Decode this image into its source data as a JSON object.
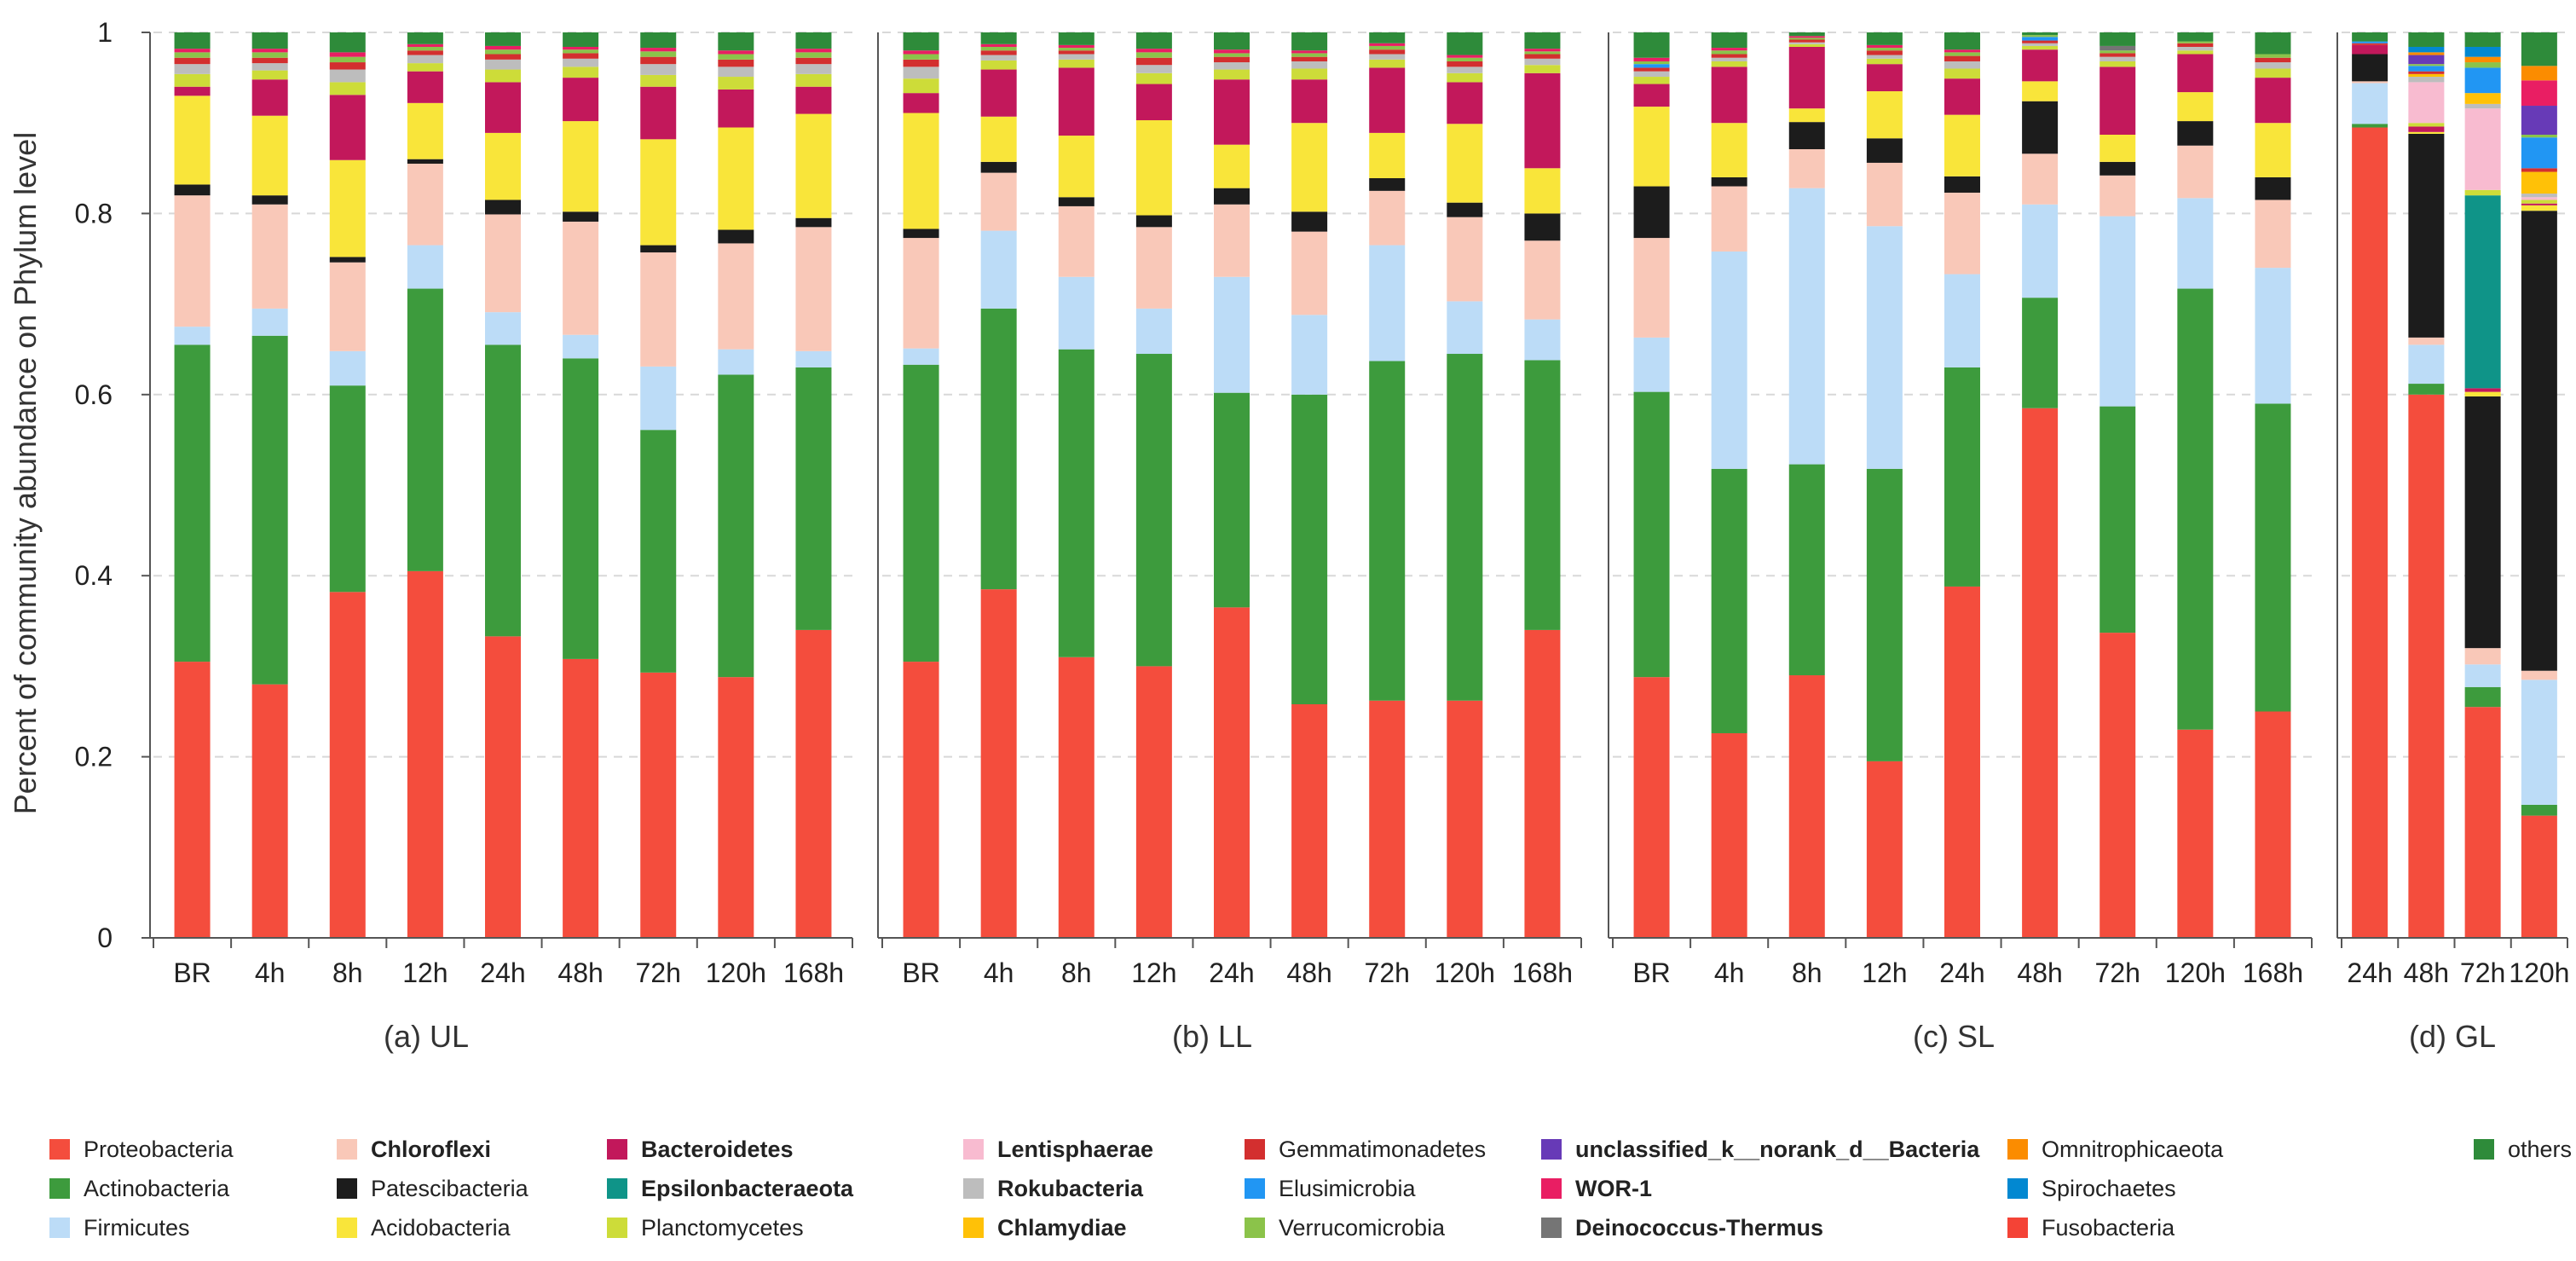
{
  "chart_data": {
    "type": "bar",
    "stacked": true,
    "ylabel": "Percent of community abundance on Phylum level",
    "ylim": [
      0,
      1
    ],
    "yticks": [
      "0",
      "0.2",
      "0.4",
      "0.6",
      "0.8",
      "1"
    ],
    "grid": true,
    "legend_position": "bottom",
    "series": [
      {
        "name": "Proteobacteria",
        "color": "#f44d3d",
        "bold": false
      },
      {
        "name": "Actinobacteria",
        "color": "#3d9b3d",
        "bold": false
      },
      {
        "name": "Firmicutes",
        "color": "#bcdcf7",
        "bold": false
      },
      {
        "name": "Chloroflexi",
        "color": "#f9c8b8",
        "bold": true
      },
      {
        "name": "Patescibacteria",
        "color": "#1c1c1c",
        "bold": false
      },
      {
        "name": "Acidobacteria",
        "color": "#f9e53a",
        "bold": false
      },
      {
        "name": "Bacteroidetes",
        "color": "#c2185b",
        "bold": true
      },
      {
        "name": "Epsilonbacteraeota",
        "color": "#0f9488",
        "bold": true
      },
      {
        "name": "Planctomycetes",
        "color": "#cddc39",
        "bold": false
      },
      {
        "name": "Lentisphaerae",
        "color": "#f8bbd0",
        "bold": true
      },
      {
        "name": "Rokubacteria",
        "color": "#bdbdbd",
        "bold": true
      },
      {
        "name": "Chlamydiae",
        "color": "#ffc107",
        "bold": true
      },
      {
        "name": "Gemmatimonadetes",
        "color": "#d32f2f",
        "bold": false
      },
      {
        "name": "Elusimicrobia",
        "color": "#2196f3",
        "bold": false
      },
      {
        "name": "Verrucomicrobia",
        "color": "#8bc34a",
        "bold": false
      },
      {
        "name": "unclassified_k__norank_d__Bacteria",
        "color": "#673ab7",
        "bold": true
      },
      {
        "name": "WOR-1",
        "color": "#e91e63",
        "bold": true
      },
      {
        "name": "Deinococcus-Thermus",
        "color": "#757575",
        "bold": true
      },
      {
        "name": "Omnitrophicaeota",
        "color": "#fb8c00",
        "bold": false
      },
      {
        "name": "Spirochaetes",
        "color": "#0288d1",
        "bold": false
      },
      {
        "name": "Fusobacteria",
        "color": "#f44336",
        "bold": false
      },
      {
        "name": "others",
        "color": "#2e8b3a",
        "bold": false
      }
    ],
    "panels": [
      {
        "title": "(a) UL",
        "categories": [
          "BR",
          "4h",
          "8h",
          "12h",
          "24h",
          "48h",
          "72h",
          "120h",
          "168h"
        ],
        "values": [
          [
            0.305,
            0.35,
            0.02,
            0.145,
            0.012,
            0.098,
            0.01,
            0,
            0.014,
            0,
            0.011,
            0,
            0.007,
            0,
            0.006,
            0,
            0.004,
            0,
            0,
            0,
            0,
            0.018
          ],
          [
            0.28,
            0.385,
            0.03,
            0.115,
            0.01,
            0.088,
            0.04,
            0,
            0.01,
            0,
            0.008,
            0,
            0.006,
            0,
            0.006,
            0,
            0.004,
            0,
            0,
            0,
            0,
            0.018
          ],
          [
            0.382,
            0.228,
            0.038,
            0.098,
            0.006,
            0.107,
            0.072,
            0,
            0.014,
            0,
            0.014,
            0,
            0.008,
            0,
            0.006,
            0,
            0.005,
            0,
            0,
            0,
            0,
            0.022
          ],
          [
            0.405,
            0.312,
            0.048,
            0.09,
            0.005,
            0.062,
            0.035,
            0,
            0.009,
            0,
            0.009,
            0,
            0.005,
            0,
            0.004,
            0,
            0.003,
            0,
            0,
            0,
            0,
            0.013
          ],
          [
            0.333,
            0.322,
            0.036,
            0.108,
            0.016,
            0.074,
            0.056,
            0,
            0.014,
            0,
            0.011,
            0,
            0.006,
            0,
            0.005,
            0,
            0.004,
            0,
            0,
            0,
            0,
            0.015
          ],
          [
            0.308,
            0.332,
            0.026,
            0.125,
            0.011,
            0.1,
            0.048,
            0,
            0.012,
            0,
            0.009,
            0,
            0.006,
            0,
            0.004,
            0,
            0.003,
            0,
            0,
            0,
            0,
            0.016
          ],
          [
            0.293,
            0.268,
            0.07,
            0.126,
            0.008,
            0.117,
            0.058,
            0,
            0.013,
            0,
            0.012,
            0,
            0.008,
            0,
            0.006,
            0,
            0.004,
            0,
            0,
            0,
            0,
            0.017
          ],
          [
            0.288,
            0.334,
            0.028,
            0.117,
            0.015,
            0.113,
            0.042,
            0,
            0.014,
            0,
            0.011,
            0,
            0.008,
            0,
            0.006,
            0,
            0.004,
            0,
            0,
            0,
            0,
            0.02
          ],
          [
            0.34,
            0.29,
            0.018,
            0.137,
            0.01,
            0.115,
            0.03,
            0,
            0.014,
            0,
            0.011,
            0,
            0.007,
            0,
            0.006,
            0,
            0.004,
            0,
            0,
            0,
            0,
            0.018
          ]
        ]
      },
      {
        "title": "(b) LL",
        "categories": [
          "BR",
          "4h",
          "8h",
          "12h",
          "24h",
          "48h",
          "72h",
          "120h",
          "168h"
        ],
        "values": [
          [
            0.305,
            0.328,
            0.018,
            0.122,
            0.01,
            0.128,
            0.022,
            0,
            0.016,
            0,
            0.013,
            0,
            0.008,
            0,
            0.006,
            0,
            0.004,
            0,
            0,
            0,
            0,
            0.02
          ],
          [
            0.385,
            0.31,
            0.086,
            0.064,
            0.012,
            0.05,
            0.052,
            0,
            0.01,
            0,
            0.006,
            0,
            0.005,
            0,
            0.004,
            0,
            0.003,
            0,
            0,
            0,
            0,
            0.013
          ],
          [
            0.31,
            0.34,
            0.08,
            0.078,
            0.01,
            0.068,
            0.075,
            0,
            0.009,
            0,
            0.006,
            0,
            0.004,
            0,
            0.003,
            0,
            0.003,
            0,
            0,
            0,
            0,
            0.014
          ],
          [
            0.3,
            0.345,
            0.05,
            0.09,
            0.013,
            0.105,
            0.04,
            0,
            0.012,
            0,
            0.009,
            0,
            0.008,
            0,
            0.006,
            0,
            0.004,
            0,
            0,
            0,
            0,
            0.018
          ],
          [
            0.365,
            0.237,
            0.128,
            0.08,
            0.018,
            0.048,
            0.072,
            0,
            0.011,
            0,
            0.008,
            0,
            0.006,
            0,
            0.004,
            0,
            0.004,
            0,
            0,
            0,
            0,
            0.019
          ],
          [
            0.258,
            0.342,
            0.088,
            0.092,
            0.022,
            0.098,
            0.048,
            0,
            0.012,
            0,
            0.008,
            0,
            0.005,
            0,
            0.004,
            0,
            0.003,
            0,
            0,
            0,
            0,
            0.02
          ],
          [
            0.262,
            0.375,
            0.128,
            0.06,
            0.014,
            0.05,
            0.072,
            0,
            0.009,
            0,
            0.006,
            0,
            0.005,
            0,
            0.004,
            0,
            0.003,
            0,
            0,
            0,
            0,
            0.012
          ],
          [
            0.262,
            0.383,
            0.058,
            0.093,
            0.016,
            0.087,
            0.046,
            0,
            0.01,
            0,
            0.007,
            0,
            0.006,
            0,
            0.004,
            0,
            0.003,
            0,
            0,
            0,
            0,
            0.025
          ],
          [
            0.34,
            0.298,
            0.045,
            0.087,
            0.03,
            0.05,
            0.105,
            0,
            0.009,
            0,
            0.007,
            0,
            0.005,
            0,
            0.003,
            0,
            0.003,
            0,
            0,
            0,
            0,
            0.018
          ]
        ]
      },
      {
        "title": "(c) SL",
        "categories": [
          "BR",
          "4h",
          "8h",
          "12h",
          "24h",
          "48h",
          "72h",
          "120h",
          "168h"
        ],
        "values": [
          [
            0.288,
            0.315,
            0.06,
            0.11,
            0.057,
            0.088,
            0.025,
            0,
            0.008,
            0,
            0.006,
            0,
            0.004,
            0.004,
            0.003,
            0,
            0.004,
            0,
            0,
            0,
            0,
            0.028
          ],
          [
            0.226,
            0.292,
            0.24,
            0.072,
            0.01,
            0.06,
            0.062,
            0,
            0.006,
            0,
            0.004,
            0,
            0.004,
            0,
            0.004,
            0,
            0.003,
            0,
            0,
            0,
            0,
            0.017
          ],
          [
            0.29,
            0.233,
            0.305,
            0.043,
            0.03,
            0.015,
            0.068,
            0,
            0.003,
            0,
            0.002,
            0,
            0.003,
            0,
            0.002,
            0,
            0.002,
            0,
            0,
            0,
            0,
            0.004
          ],
          [
            0.195,
            0.323,
            0.268,
            0.07,
            0.027,
            0.052,
            0.03,
            0,
            0.006,
            0,
            0.004,
            0,
            0.005,
            0,
            0.003,
            0,
            0.003,
            0,
            0,
            0,
            0,
            0.014
          ],
          [
            0.388,
            0.242,
            0.103,
            0.09,
            0.018,
            0.068,
            0.04,
            0,
            0.011,
            0,
            0.008,
            0,
            0.006,
            0,
            0.004,
            0,
            0.003,
            0,
            0,
            0,
            0,
            0.019
          ],
          [
            0.585,
            0.122,
            0.103,
            0.056,
            0.058,
            0.022,
            0.035,
            0,
            0.004,
            0,
            0.003,
            0,
            0.003,
            0.004,
            0.002,
            0,
            0.0,
            0,
            0,
            0,
            0,
            0.003
          ],
          [
            0.337,
            0.25,
            0.21,
            0.045,
            0.015,
            0.03,
            0.075,
            0,
            0.006,
            0,
            0.005,
            0,
            0.004,
            0,
            0.003,
            0,
            0.0,
            0.005,
            0,
            0,
            0,
            0.015
          ],
          [
            0.23,
            0.487,
            0.1,
            0.058,
            0.027,
            0.032,
            0.042,
            0,
            0.004,
            0,
            0.004,
            0,
            0.004,
            0,
            0.002,
            0,
            0.0,
            0,
            0,
            0,
            0,
            0.01
          ],
          [
            0.25,
            0.34,
            0.15,
            0.075,
            0.025,
            0.06,
            0.05,
            0,
            0.01,
            0,
            0.007,
            0,
            0.005,
            0,
            0.004,
            0,
            0.0,
            0,
            0,
            0,
            0,
            0.024
          ]
        ]
      },
      {
        "title": "(d) GL",
        "categories": [
          "24h",
          "48h",
          "72h",
          "120h"
        ],
        "values": [
          [
            0.895,
            0.004,
            0.045,
            0.002,
            0.03,
            0,
            0.01,
            0,
            0,
            0,
            0,
            0,
            0.002,
            0.002,
            0,
            0,
            0,
            0,
            0,
            0,
            0,
            0.01
          ],
          [
            0.6,
            0.012,
            0.043,
            0.008,
            0.225,
            0.002,
            0.006,
            0,
            0.004,
            0.045,
            0.006,
            0.003,
            0.003,
            0.006,
            0.002,
            0.01,
            0,
            0,
            0.003,
            0.006,
            0,
            0.016
          ],
          [
            0.255,
            0.022,
            0.025,
            0.018,
            0.278,
            0.005,
            0.004,
            0.213,
            0.006,
            0.09,
            0.005,
            0.012,
            0,
            0.028,
            0.006,
            0,
            0,
            0,
            0.006,
            0.011,
            0,
            0.016
          ],
          [
            0.135,
            0.012,
            0.138,
            0.01,
            0.508,
            0.006,
            0.002,
            0,
            0.004,
            0.003,
            0.004,
            0.024,
            0.004,
            0.034,
            0.003,
            0.032,
            0.028,
            0,
            0.016,
            0,
            0,
            0.037
          ]
        ]
      }
    ]
  }
}
